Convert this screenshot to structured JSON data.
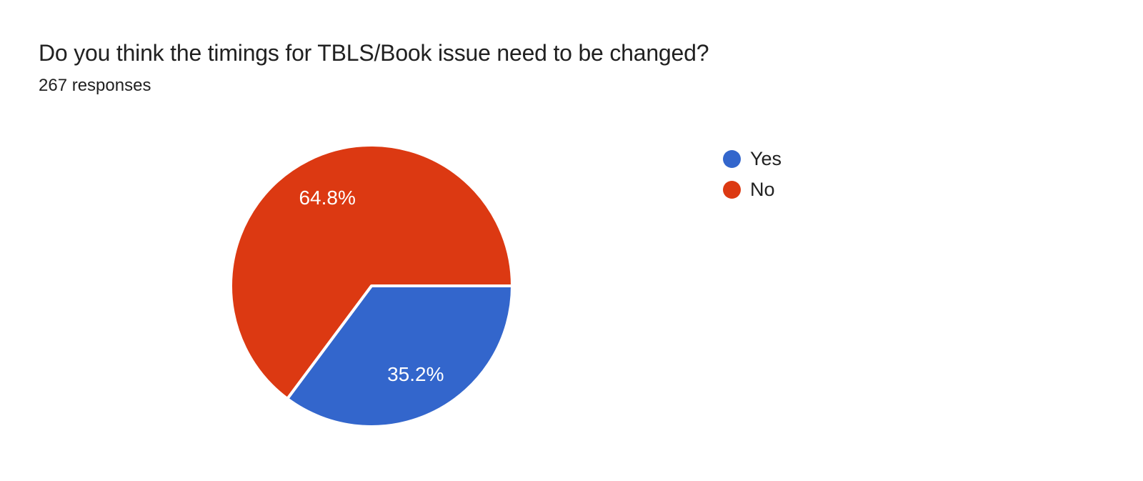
{
  "chart_data": {
    "type": "pie",
    "title": "Do you think the timings for TBLS/Book issue need to be changed?",
    "subtitle": "267 responses",
    "response_count": 267,
    "categories": [
      "Yes",
      "No"
    ],
    "values": [
      35.2,
      64.8
    ],
    "value_labels": [
      "35.2%",
      "64.8%"
    ],
    "colors": [
      "#3366cc",
      "#dc3912"
    ],
    "slice_label_color": "#ffffff",
    "text_color": "#212121",
    "background": "#ffffff",
    "legend_position": "right",
    "start_angle_deg": 0,
    "direction": "clockwise"
  }
}
